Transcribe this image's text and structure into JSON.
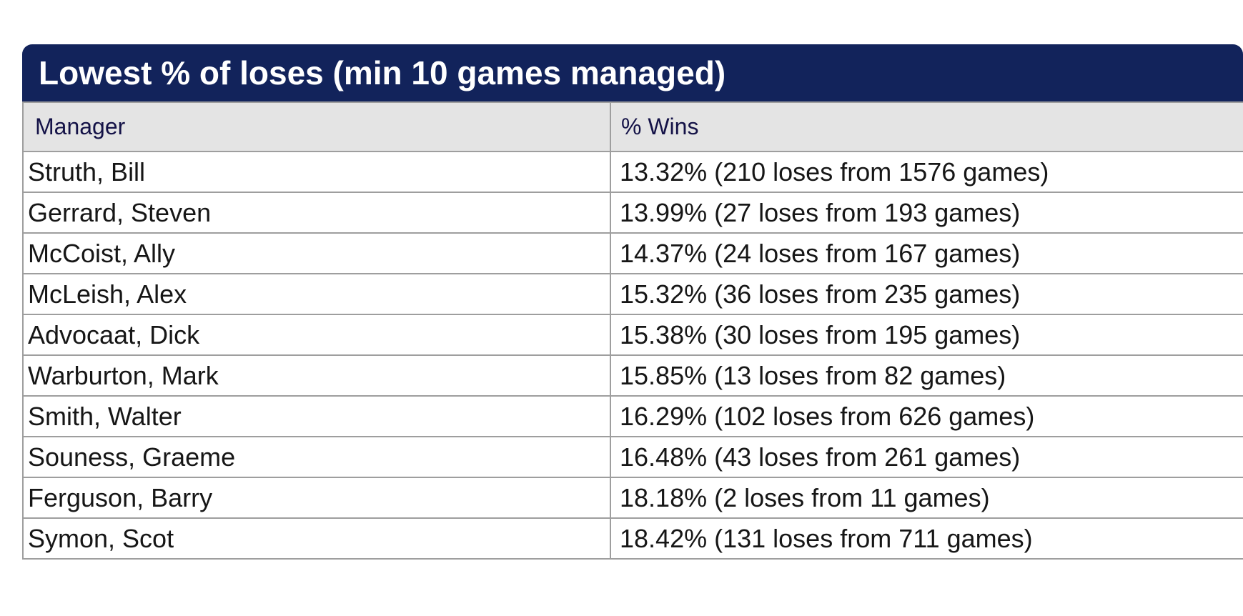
{
  "title": "Lowest % of loses (min 10 games managed)",
  "table": {
    "columns": [
      "Manager",
      "% Wins"
    ],
    "rows": [
      {
        "manager": "Struth, Bill",
        "wins": "13.32% (210 loses from 1576 games)"
      },
      {
        "manager": "Gerrard, Steven",
        "wins": "13.99% (27 loses from 193 games)"
      },
      {
        "manager": "McCoist, Ally",
        "wins": "14.37% (24 loses from 167 games)"
      },
      {
        "manager": "McLeish, Alex",
        "wins": "15.32% (36 loses from 235 games)"
      },
      {
        "manager": "Advocaat, Dick",
        "wins": "15.38% (30 loses from 195 games)"
      },
      {
        "manager": "Warburton, Mark",
        "wins": "15.85% (13 loses from 82 games)"
      },
      {
        "manager": "Smith, Walter",
        "wins": "16.29% (102 loses from 626 games)"
      },
      {
        "manager": "Souness, Graeme",
        "wins": "16.48% (43 loses from 261 games)"
      },
      {
        "manager": "Ferguson, Barry",
        "wins": "18.18% (2 loses from 11 games)"
      },
      {
        "manager": "Symon, Scot",
        "wins": "18.42% (131 loses from 711 games)"
      }
    ]
  },
  "colors": {
    "title_bar_bg": "#12235b",
    "title_text": "#ffffff",
    "column_header_bg": "#e4e4e4",
    "column_header_text": "#141247",
    "row_text": "#161616",
    "border": "#9e9e9e",
    "page_bg": "#ffffff"
  },
  "chart_data": {
    "type": "table",
    "title": "Lowest % of loses (min 10 games managed)",
    "columns": [
      "Manager",
      "% Wins"
    ],
    "rows": [
      [
        "Struth, Bill",
        "13.32% (210 loses from 1576 games)"
      ],
      [
        "Gerrard, Steven",
        "13.99% (27 loses from 193 games)"
      ],
      [
        "McCoist, Ally",
        "14.37% (24 loses from 167 games)"
      ],
      [
        "McLeish, Alex",
        "15.32% (36 loses from 235 games)"
      ],
      [
        "Advocaat, Dick",
        "15.38% (30 loses from 195 games)"
      ],
      [
        "Warburton, Mark",
        "15.85% (13 loses from 82 games)"
      ],
      [
        "Smith, Walter",
        "16.29% (102 loses from 626 games)"
      ],
      [
        "Souness, Graeme",
        "16.48% (43 loses from 261 games)"
      ],
      [
        "Ferguson, Barry",
        "18.18% (2 loses from 11 games)"
      ],
      [
        "Symon, Scot",
        "18.42% (131 loses from 711 games)"
      ]
    ],
    "loss_percentages": [
      13.32,
      13.99,
      14.37,
      15.32,
      15.38,
      15.85,
      16.29,
      16.48,
      18.18,
      18.42
    ],
    "loses": [
      210,
      27,
      24,
      36,
      30,
      13,
      102,
      43,
      2,
      131
    ],
    "games": [
      1576,
      193,
      167,
      235,
      195,
      82,
      626,
      261,
      11,
      711
    ]
  }
}
